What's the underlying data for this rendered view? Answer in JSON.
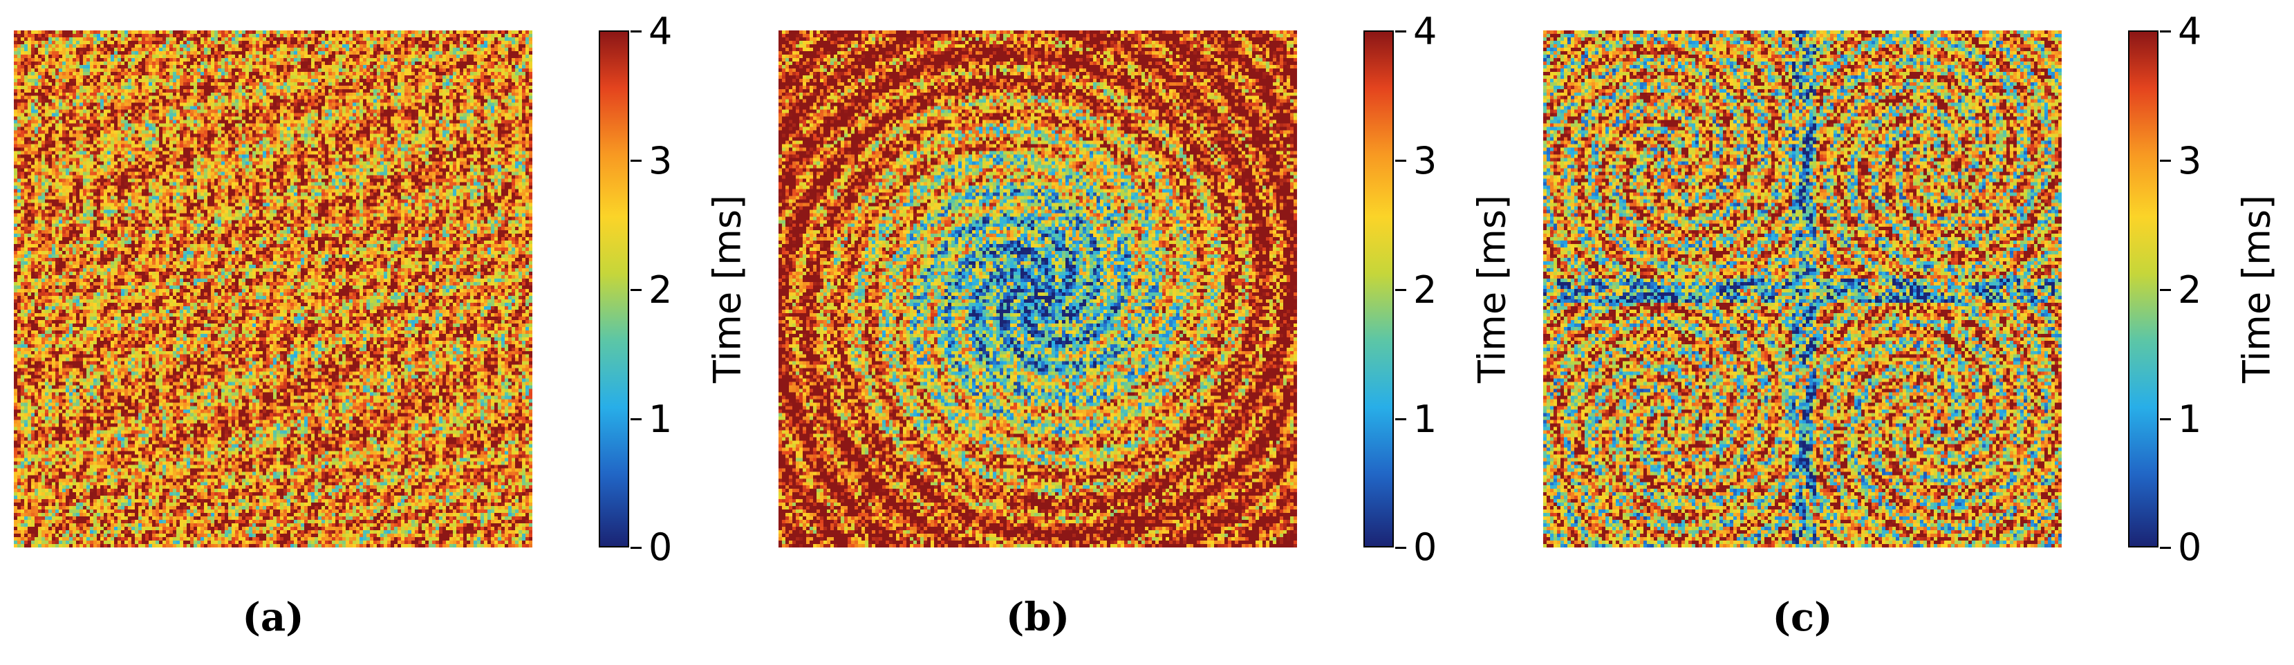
{
  "chart_data": [
    {
      "type": "heatmap",
      "panel_label": "(a)",
      "pattern": "uniform swirling stripes, mostly high values with scattered low-value streaks",
      "colorbar": {
        "label": "Time [ms]",
        "range": [
          0,
          4
        ],
        "ticks": [
          "0",
          "1",
          "2",
          "3",
          "4"
        ],
        "colormap": "jet"
      }
    },
    {
      "type": "heatmap",
      "panel_label": "(b)",
      "pattern": "single large vortex centered in the field, low values concentrated in the core",
      "colorbar": {
        "label": "Time [ms]",
        "range": [
          0,
          4
        ],
        "ticks": [
          "0",
          "1",
          "2",
          "3",
          "4"
        ],
        "colormap": "jet"
      }
    },
    {
      "type": "heatmap",
      "panel_label": "(c)",
      "pattern": "four vortices in a 2x2 arrangement separated by a low-value cross",
      "colorbar": {
        "label": "Time [ms]",
        "range": [
          0,
          4
        ],
        "ticks": [
          "0",
          "1",
          "2",
          "3",
          "4"
        ],
        "colormap": "jet"
      }
    }
  ]
}
